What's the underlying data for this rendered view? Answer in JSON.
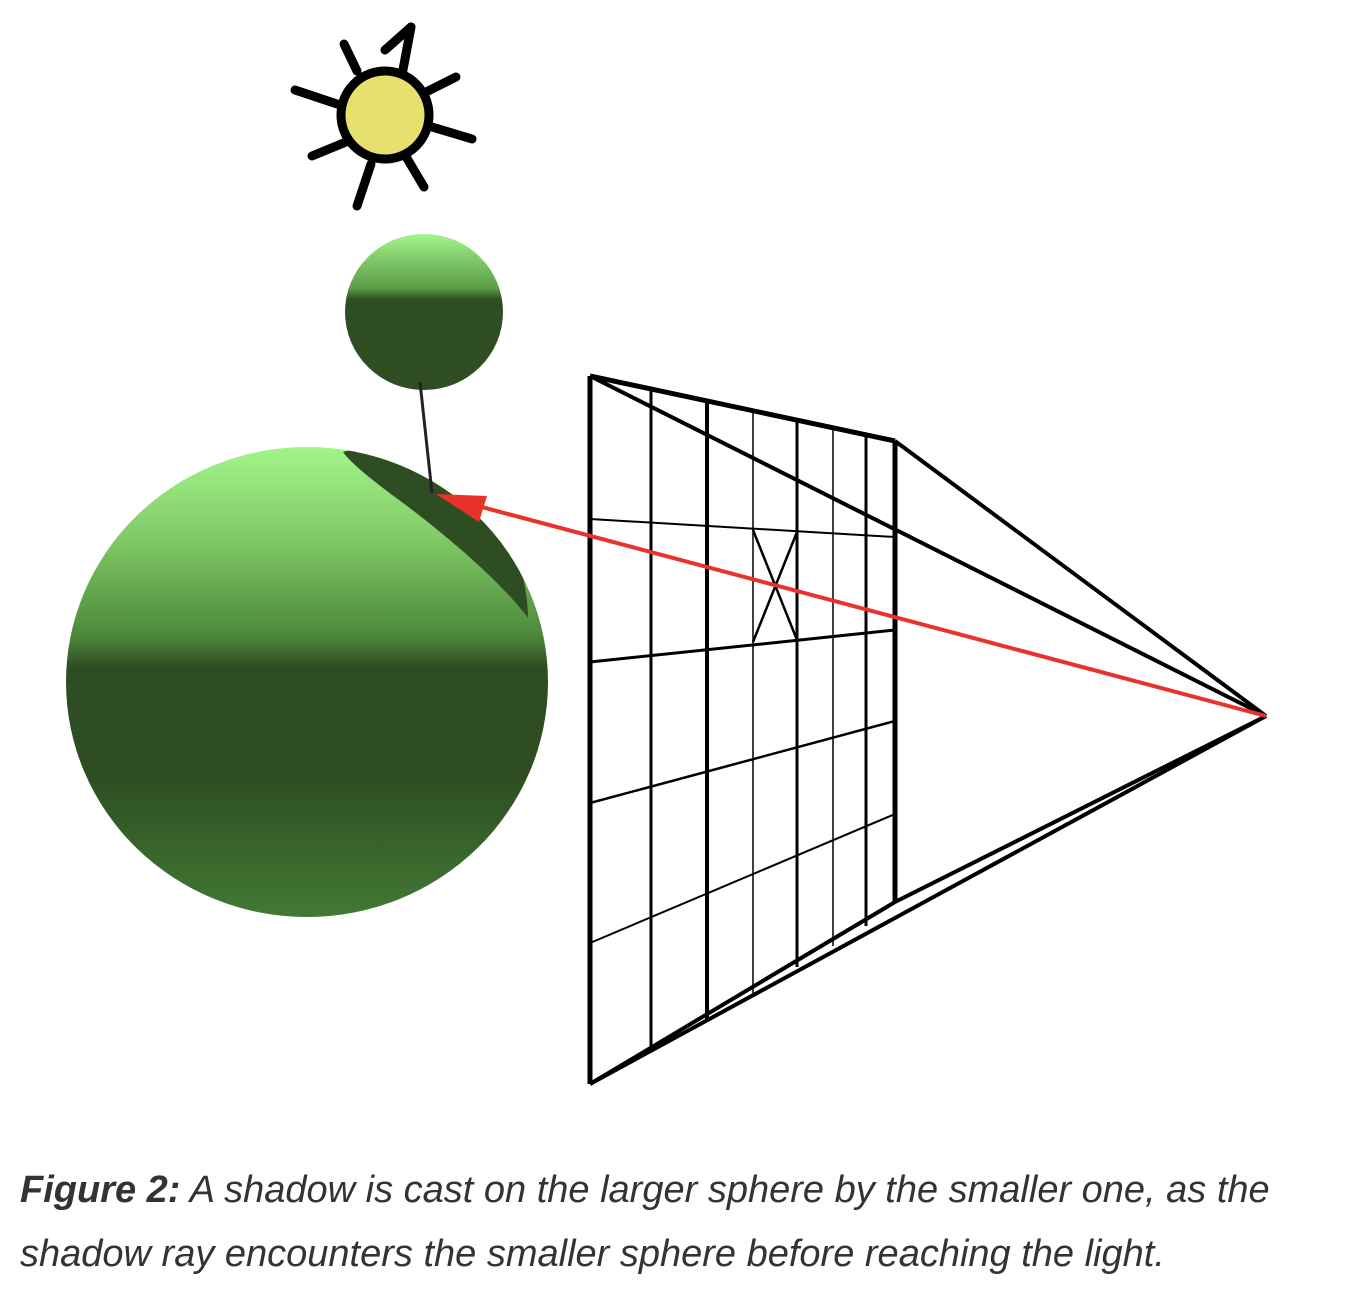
{
  "caption": {
    "label": "Figure 2:",
    "text": "A shadow is cast on the larger sphere by the smaller one, as the shadow ray encounters the smaller sphere before reaching the light."
  },
  "colors": {
    "sun_fill": "#e6e06e",
    "sun_rays": "#000000",
    "sphere_light": "#a2f58a",
    "sphere_mid": "#5f9e46",
    "sphere_dark": "#2e4d22",
    "grid_lines": "#000000",
    "shadow_ray": "#222222",
    "primary_ray": "#e8322a"
  },
  "icons": {
    "light": "sun-icon"
  }
}
